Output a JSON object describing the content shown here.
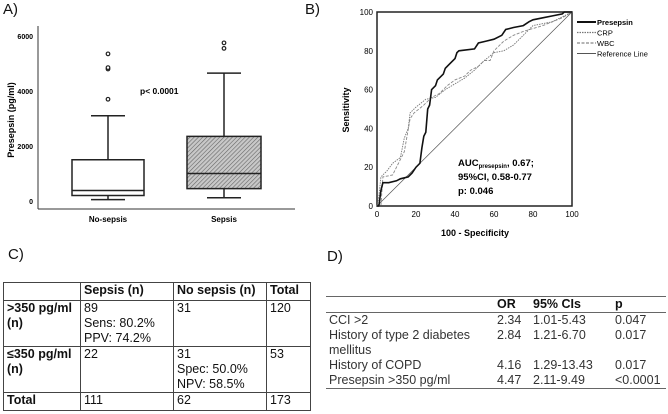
{
  "panels": {
    "a": "A)",
    "b": "B)",
    "c": "C)",
    "d": "D)"
  },
  "chart_data": [
    {
      "type": "box",
      "title": "",
      "ylabel": "Presepsin (pg/ml)",
      "xlabel": "",
      "ylim": [
        0,
        6000
      ],
      "yticks": [
        0,
        2000,
        4000,
        6000
      ],
      "categories": [
        "No-sepsis",
        "Sepsis"
      ],
      "boxes": [
        {
          "name": "No-sepsis",
          "min": 50,
          "q1": 200,
          "median": 380,
          "q3": 1500,
          "max": 3100,
          "outliers": [
            3700,
            4800,
            4850,
            5350
          ],
          "fill": "#ffffff"
        },
        {
          "name": "Sepsis",
          "min": 120,
          "q1": 450,
          "median": 1000,
          "q3": 2350,
          "max": 4650,
          "outliers": [
            5550,
            5750
          ],
          "fill": "#aaaaaa"
        }
      ],
      "annotation": "p< 0.0001"
    },
    {
      "type": "line",
      "xlabel": "100 - Specificity",
      "ylabel": "Sensitivity",
      "xlim": [
        0,
        100
      ],
      "ylim": [
        0,
        100
      ],
      "xticks": [
        0,
        20,
        40,
        60,
        80,
        100
      ],
      "yticks": [
        0,
        20,
        40,
        60,
        80,
        100
      ],
      "legend_position": "right",
      "series": [
        {
          "name": "Presepsin",
          "style": "solid-thick",
          "points": [
            [
              0,
              0
            ],
            [
              1,
              0
            ],
            [
              2,
              8
            ],
            [
              3,
              12
            ],
            [
              6,
              12
            ],
            [
              10,
              13
            ],
            [
              12,
              14
            ],
            [
              16,
              15
            ],
            [
              18,
              17
            ],
            [
              20,
              20
            ],
            [
              22,
              22
            ],
            [
              23,
              30
            ],
            [
              24,
              36
            ],
            [
              25,
              38
            ],
            [
              26,
              50
            ],
            [
              27,
              52
            ],
            [
              28,
              60
            ],
            [
              30,
              62
            ],
            [
              31,
              65
            ],
            [
              34,
              68
            ],
            [
              35,
              71
            ],
            [
              37,
              73
            ],
            [
              40,
              76
            ],
            [
              41,
              79
            ],
            [
              42,
              80
            ],
            [
              50,
              81
            ],
            [
              52,
              84
            ],
            [
              56,
              85
            ],
            [
              60,
              86
            ],
            [
              64,
              88
            ],
            [
              66,
              91
            ],
            [
              70,
              92
            ],
            [
              75,
              93
            ],
            [
              78,
              95
            ],
            [
              80,
              96
            ],
            [
              85,
              97
            ],
            [
              90,
              98
            ],
            [
              95,
              99
            ],
            [
              96,
              100
            ],
            [
              100,
              100
            ]
          ]
        },
        {
          "name": "CRP",
          "style": "dotted",
          "points": [
            [
              0,
              0
            ],
            [
              1,
              5
            ],
            [
              2,
              15
            ],
            [
              5,
              18
            ],
            [
              8,
              22
            ],
            [
              12,
              25
            ],
            [
              14,
              35
            ],
            [
              16,
              40
            ],
            [
              17,
              48
            ],
            [
              20,
              51
            ],
            [
              25,
              55
            ],
            [
              30,
              56
            ],
            [
              35,
              60
            ],
            [
              40,
              63
            ],
            [
              45,
              66
            ],
            [
              50,
              70
            ],
            [
              55,
              75
            ],
            [
              60,
              79
            ],
            [
              65,
              80
            ],
            [
              70,
              83
            ],
            [
              75,
              88
            ],
            [
              80,
              93
            ],
            [
              90,
              95
            ],
            [
              100,
              100
            ]
          ]
        },
        {
          "name": "WBC",
          "style": "dashed",
          "points": [
            [
              0,
              0
            ],
            [
              2,
              0
            ],
            [
              3,
              15
            ],
            [
              8,
              16
            ],
            [
              10,
              20
            ],
            [
              14,
              28
            ],
            [
              17,
              45
            ],
            [
              19,
              48
            ],
            [
              24,
              52
            ],
            [
              28,
              56
            ],
            [
              32,
              58
            ],
            [
              36,
              62
            ],
            [
              40,
              65
            ],
            [
              45,
              67
            ],
            [
              48,
              70
            ],
            [
              52,
              72
            ],
            [
              55,
              75
            ],
            [
              58,
              75
            ],
            [
              60,
              80
            ],
            [
              62,
              82
            ],
            [
              65,
              85
            ],
            [
              70,
              88
            ],
            [
              75,
              90
            ],
            [
              85,
              93
            ],
            [
              95,
              97
            ],
            [
              100,
              100
            ]
          ]
        },
        {
          "name": "Reference Line",
          "style": "thin",
          "points": [
            [
              0,
              0
            ],
            [
              100,
              100
            ]
          ]
        }
      ],
      "annotation": {
        "auc_label": "AUC",
        "auc_sub": "presepsin",
        "auc_value": ", 0.67;",
        "ci": "95%CI,  0.58-0.77",
        "p": "p: 0.046"
      }
    }
  ],
  "table_c": {
    "headers": [
      "",
      "Sepsis (n)",
      "No sepsis (n)",
      "Total"
    ],
    "rows": [
      {
        "label1": ">350 pg/ml",
        "label2": "(n)",
        "sepsis": [
          "89",
          "Sens: 80.2%",
          "PPV: 74.2%"
        ],
        "nosepsis": [
          "31"
        ],
        "total": "120"
      },
      {
        "label1": "≤350 pg/ml",
        "label2": "(n)",
        "sepsis": [
          "22"
        ],
        "nosepsis": [
          "31",
          "Spec: 50.0%",
          "NPV: 58.5%"
        ],
        "total": "53"
      }
    ],
    "total_row": {
      "label": "Total",
      "sepsis": "111",
      "nosepsis": "62",
      "total": "173"
    }
  },
  "table_d": {
    "headers": [
      "",
      "OR",
      "95% CIs",
      "p"
    ],
    "rows": [
      [
        "CCI >2",
        "2.34",
        "1.01-5.43",
        "0.047"
      ],
      [
        "History of type 2 diabetes mellitus",
        "2.84",
        "1.21-6.70",
        "0.017"
      ],
      [
        "History of COPD",
        "4.16",
        "1.29-13.43",
        "0.017"
      ],
      [
        "Presepsin >350 pg/ml",
        "4.47",
        "2.11-9.49",
        "<0.0001"
      ]
    ]
  }
}
